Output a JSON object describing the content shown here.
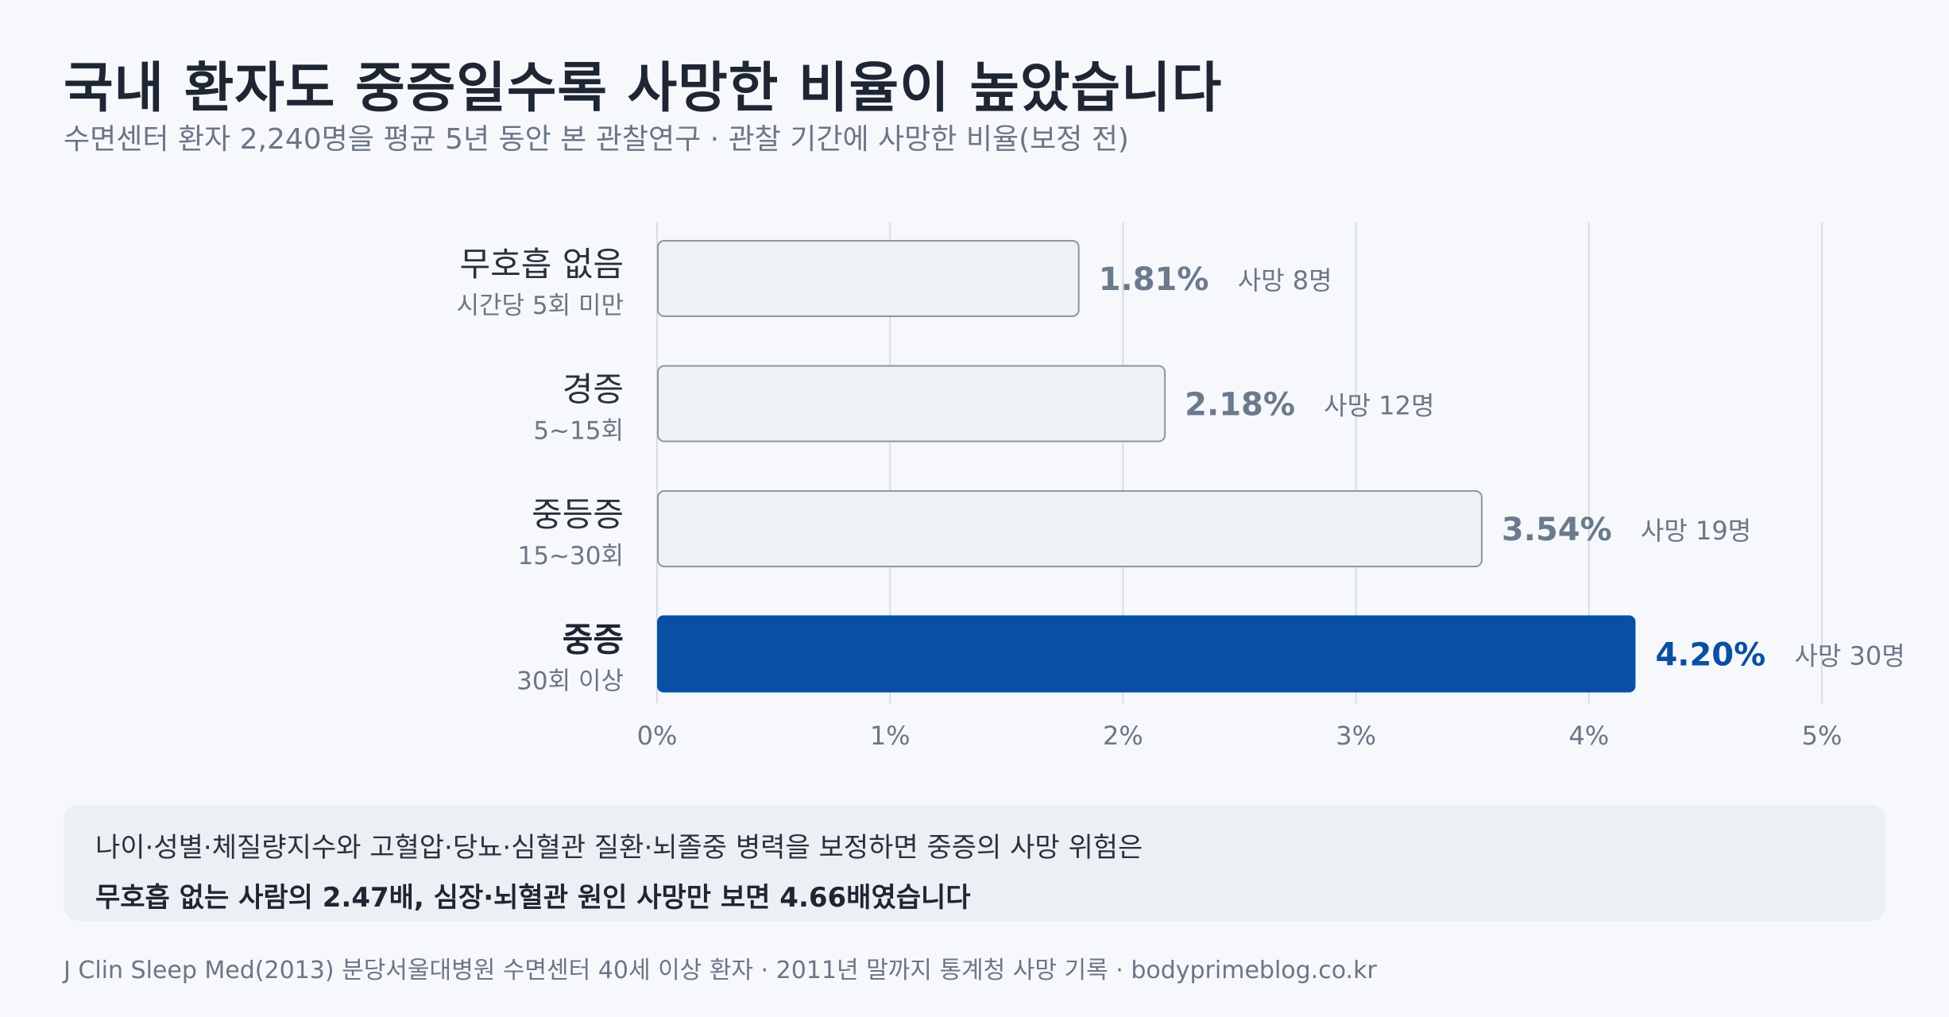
{
  "header": {
    "title": "국내 환자도 중증일수록 사망한 비율이 높았습니다",
    "subtitle": "수면센터 환자 2,240명을 평균 5년 동안 본 관찰연구 · 관찰 기간에 사망한 비율(보정 전)"
  },
  "chart_data": {
    "type": "bar",
    "orientation": "horizontal",
    "categories": [
      "무호흡 없음",
      "경증",
      "중등증",
      "중증"
    ],
    "category_sublabels": [
      "시간당 5회 미만",
      "5~15회",
      "15~30회",
      "30회 이상"
    ],
    "values": [
      1.81,
      2.18,
      3.54,
      4.2
    ],
    "value_labels": [
      "1.81%",
      "2.18%",
      "3.54%",
      "4.20%"
    ],
    "death_labels": [
      "사망 8명",
      "사망 12명",
      "사망 19명",
      "사망 30명"
    ],
    "highlight_index": 3,
    "xlim": [
      0,
      5
    ],
    "x_ticks": [
      "0%",
      "1%",
      "2%",
      "3%",
      "4%",
      "5%"
    ],
    "grid": true,
    "colors": {
      "bar_default_fill": "#eef1f5",
      "bar_default_stroke": "#8e969f",
      "bar_highlight": "#0750a4",
      "gridline": "#d9dde3",
      "value_default": "#6b7a8c",
      "value_highlight": "#0a4fa3"
    }
  },
  "note": {
    "line1": "나이·성별·체질량지수와 고혈압·당뇨·심혈관 질환·뇌졸중 병력을 보정하면 중증의 사망 위험은",
    "line2": "무호흡 없는 사람의 2.47배, 심장·뇌혈관 원인 사망만 보면 4.66배였습니다"
  },
  "source": "J Clin Sleep Med(2013) 분당서울대병원 수면센터 40세 이상 환자 · 2011년 말까지 통계청 사망 기록 · bodyprimeblog.co.kr"
}
